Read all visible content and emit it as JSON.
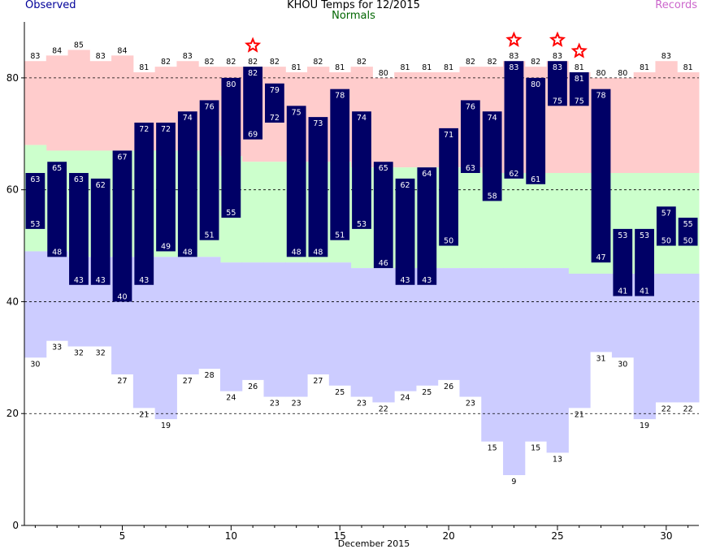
{
  "chart_data": {
    "type": "bar",
    "title": "KHOU Temps for 12/2015",
    "legend": {
      "observed": "Observed",
      "normals": "Normals",
      "records": "Records"
    },
    "xlabel": "December 2015",
    "ylabel": "",
    "x_ticks": [
      5,
      10,
      15,
      20,
      25,
      30
    ],
    "y_ticks": [
      0,
      20,
      40,
      60,
      80
    ],
    "ylim": [
      0,
      90
    ],
    "grid": "dotted at 20, 40, 60, 80",
    "days": [
      1,
      2,
      3,
      4,
      5,
      6,
      7,
      8,
      9,
      10,
      11,
      12,
      13,
      14,
      15,
      16,
      17,
      18,
      19,
      20,
      21,
      22,
      23,
      24,
      25,
      26,
      27,
      28,
      29,
      30,
      31
    ],
    "observed_high": [
      63,
      65,
      63,
      62,
      67,
      72,
      72,
      74,
      76,
      80,
      82,
      79,
      75,
      73,
      78,
      74,
      65,
      62,
      64,
      71,
      76,
      74,
      83,
      80,
      83,
      81,
      78,
      53,
      53,
      57,
      55
    ],
    "observed_low": [
      53,
      48,
      43,
      43,
      40,
      43,
      49,
      48,
      51,
      55,
      69,
      72,
      48,
      48,
      51,
      53,
      46,
      43,
      43,
      50,
      63,
      58,
      62,
      61,
      75,
      75,
      47,
      41,
      41,
      50,
      50
    ],
    "record_high": [
      83,
      84,
      85,
      83,
      84,
      81,
      82,
      83,
      82,
      82,
      82,
      82,
      81,
      82,
      81,
      82,
      80,
      81,
      81,
      81,
      82,
      82,
      83,
      82,
      83,
      81,
      80,
      80,
      81,
      83,
      81
    ],
    "record_low": [
      30,
      33,
      32,
      32,
      27,
      21,
      19,
      27,
      28,
      24,
      26,
      23,
      23,
      27,
      25,
      23,
      22,
      24,
      25,
      26,
      23,
      15,
      9,
      15,
      13,
      21,
      31,
      30,
      19,
      22,
      22
    ],
    "normal_high": [
      68,
      67,
      67,
      67,
      67,
      67,
      67,
      67,
      67,
      66,
      65,
      65,
      65,
      65,
      65,
      64,
      64,
      64,
      64,
      64,
      64,
      63,
      63,
      63,
      63,
      63,
      63,
      63,
      63,
      63,
      63
    ],
    "normal_low": [
      49,
      49,
      48,
      48,
      48,
      48,
      48,
      48,
      48,
      47,
      47,
      47,
      47,
      47,
      47,
      46,
      46,
      46,
      46,
      46,
      46,
      46,
      46,
      46,
      46,
      45,
      45,
      45,
      45,
      45,
      45
    ],
    "record_high_set_days": [
      11,
      23,
      25,
      26
    ],
    "colors": {
      "observed_bar": "#000066",
      "observed_label": "#ffffff",
      "record_high_band": "#ffcccc",
      "normal_band": "#ccffcc",
      "record_low_band": "#ccccff",
      "star": "#ff0000",
      "title": "#000000",
      "observed_legend": "#000099",
      "normals_legend": "#006600",
      "records_legend": "#cc66cc",
      "gridline": "#000000",
      "axis": "#000000"
    }
  }
}
